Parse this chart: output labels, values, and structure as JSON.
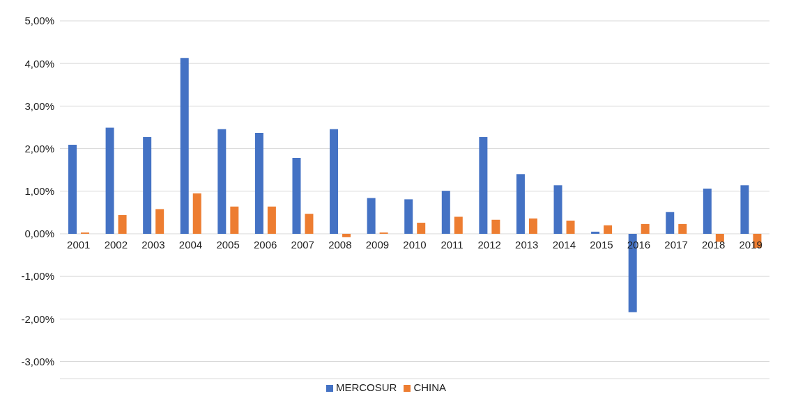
{
  "chart_data": {
    "type": "bar",
    "categories": [
      "2001",
      "2002",
      "2003",
      "2004",
      "2005",
      "2006",
      "2007",
      "2008",
      "2009",
      "2010",
      "2011",
      "2012",
      "2013",
      "2014",
      "2015",
      "2016",
      "2017",
      "2018",
      "2019"
    ],
    "series": [
      {
        "name": "MERCOSUR",
        "color": "#4472c4",
        "values": [
          2.09,
          2.49,
          2.27,
          4.13,
          2.46,
          2.37,
          1.78,
          2.46,
          0.84,
          0.81,
          1.01,
          2.27,
          1.4,
          1.14,
          0.05,
          -1.84,
          0.51,
          1.06,
          1.14
        ]
      },
      {
        "name": "CHINA",
        "color": "#ed7d31",
        "values": [
          0.03,
          0.44,
          0.58,
          0.95,
          0.64,
          0.64,
          0.47,
          -0.08,
          0.03,
          0.26,
          0.4,
          0.33,
          0.36,
          0.31,
          0.2,
          0.23,
          0.23,
          -0.19,
          -0.33
        ]
      }
    ],
    "ylim": [
      -3.4,
      5
    ],
    "yticks": [
      {
        "value": -3,
        "label": "-3,00%"
      },
      {
        "value": -2,
        "label": "-2,00%"
      },
      {
        "value": -1,
        "label": "-1,00%"
      },
      {
        "value": 0,
        "label": "0,00%"
      },
      {
        "value": 1,
        "label": "1,00%"
      },
      {
        "value": 2,
        "label": "2,00%"
      },
      {
        "value": 3,
        "label": "3,00%"
      },
      {
        "value": 4,
        "label": "4,00%"
      },
      {
        "value": 5,
        "label": "5,00%"
      }
    ],
    "grid": "y",
    "legend": "bottom"
  }
}
